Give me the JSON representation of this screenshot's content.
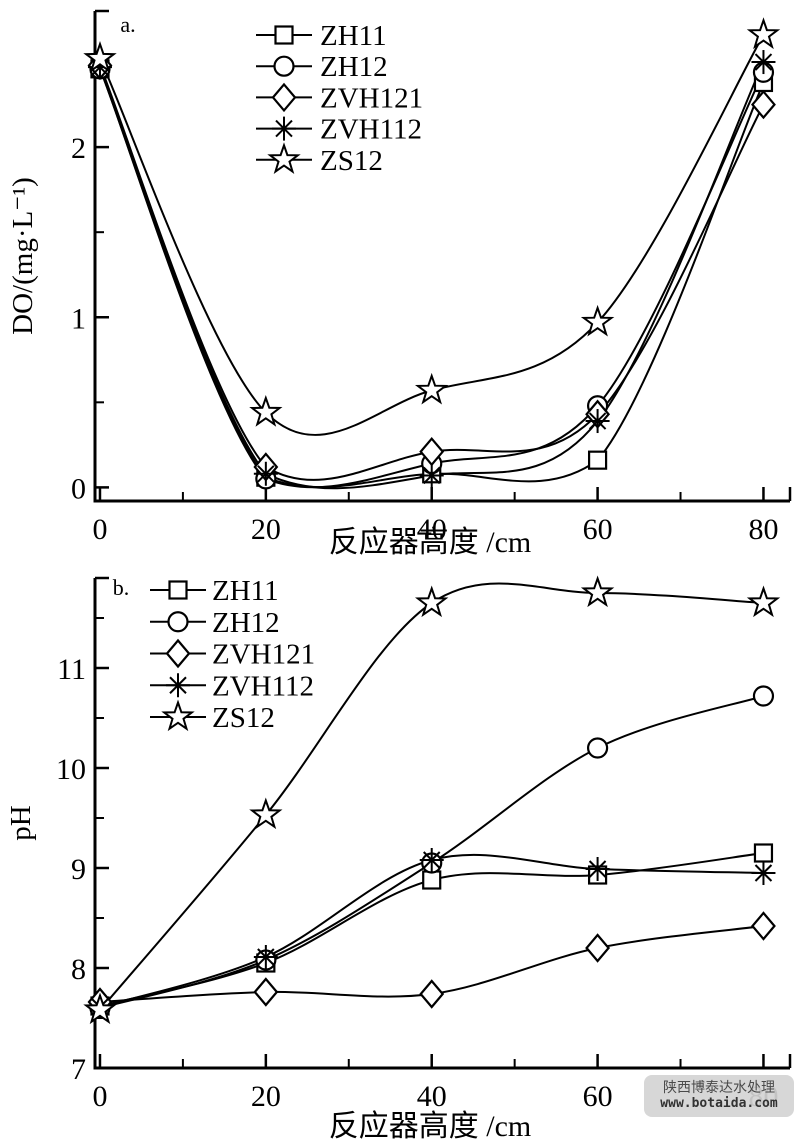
{
  "watermark": {
    "line1": "陕西博泰达水处理",
    "line2": "www.botaida.com",
    "bg_color": "#d4d4d4",
    "text_color": "#4a4a4a"
  },
  "line_color": "#000000",
  "marker_fill": "#ffffff",
  "chart_data": [
    {
      "type": "line",
      "panel_label": "a.",
      "title": "",
      "xlabel": "反应器高度 /cm",
      "ylabel": "DO/(mg·L⁻¹)",
      "x": [
        0,
        20,
        40,
        60,
        80
      ],
      "xlim": [
        0,
        80
      ],
      "ylim": [
        0,
        2.8
      ],
      "x_major_ticks": [
        0,
        20,
        40,
        60,
        80
      ],
      "x_minor_ticks": [
        10,
        30,
        50,
        70
      ],
      "y_major_ticks": [
        0,
        1,
        2
      ],
      "y_minor_ticks": [
        0.5,
        1.5,
        2.5
      ],
      "grid": false,
      "legend_position": "upper-left-inside",
      "series": [
        {
          "name": "ZH11",
          "marker": "square",
          "values": [
            2.46,
            0.06,
            0.08,
            0.16,
            2.38
          ]
        },
        {
          "name": "ZH12",
          "marker": "circle",
          "values": [
            2.46,
            0.05,
            0.14,
            0.48,
            2.44
          ]
        },
        {
          "name": "ZVH121",
          "marker": "diamond",
          "values": [
            2.48,
            0.12,
            0.21,
            0.43,
            2.25
          ]
        },
        {
          "name": "ZVH112",
          "marker": "asterisk",
          "values": [
            2.47,
            0.08,
            0.07,
            0.39,
            2.5
          ]
        },
        {
          "name": "ZS12",
          "marker": "star",
          "values": [
            2.52,
            0.44,
            0.57,
            0.97,
            2.66
          ]
        }
      ]
    },
    {
      "type": "line",
      "panel_label": "b.",
      "title": "",
      "xlabel": "反应器高度 /cm",
      "ylabel": "pH",
      "x": [
        0,
        20,
        40,
        60,
        80
      ],
      "xlim": [
        0,
        80
      ],
      "ylim": [
        7,
        11.9
      ],
      "x_major_ticks": [
        0,
        20,
        40,
        60,
        80
      ],
      "x_minor_ticks": [
        10,
        30,
        50,
        70
      ],
      "y_major_ticks": [
        7,
        8,
        9,
        10,
        11
      ],
      "y_minor_ticks": [
        7.5,
        8.5,
        9.5,
        10.5,
        11.5
      ],
      "grid": false,
      "legend_position": "upper-left-inside",
      "series": [
        {
          "name": "ZH11",
          "marker": "square",
          "values": [
            7.62,
            8.05,
            8.88,
            8.93,
            9.15
          ]
        },
        {
          "name": "ZH12",
          "marker": "circle",
          "values": [
            7.6,
            8.08,
            9.05,
            10.2,
            10.72
          ]
        },
        {
          "name": "ZVH121",
          "marker": "diamond",
          "values": [
            7.66,
            7.76,
            7.74,
            8.2,
            8.42
          ]
        },
        {
          "name": "ZVH112",
          "marker": "asterisk",
          "values": [
            7.61,
            8.11,
            9.08,
            8.99,
            8.95
          ]
        },
        {
          "name": "ZS12",
          "marker": "star",
          "values": [
            7.58,
            9.53,
            11.65,
            11.75,
            11.65
          ]
        }
      ]
    }
  ]
}
